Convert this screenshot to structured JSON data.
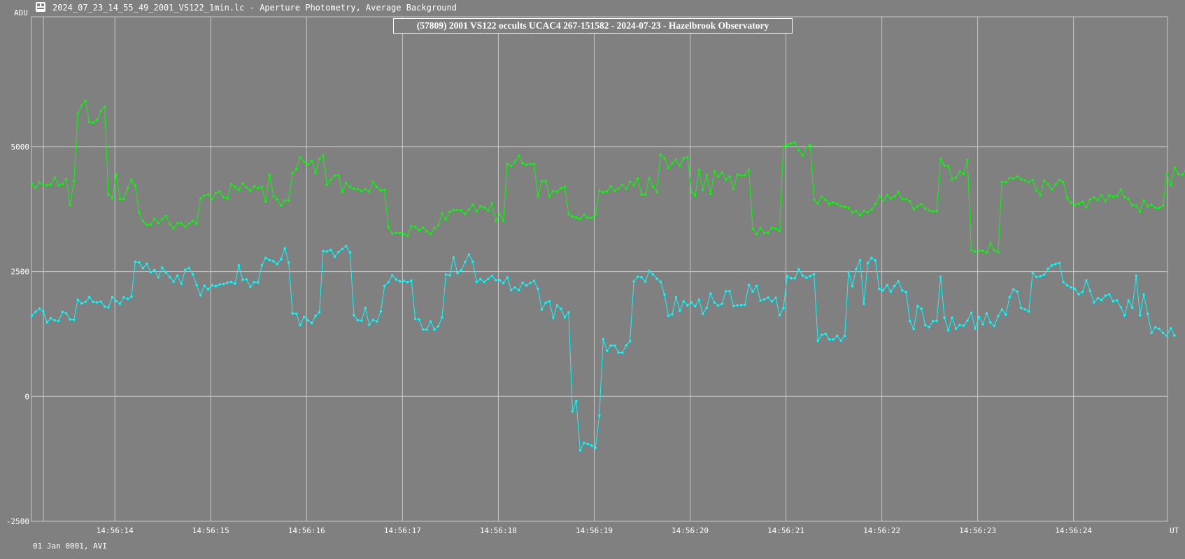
{
  "window": {
    "title": "2024_07_23_14_55_49_2001_VS122_1min.lc - Aperture Photometry, Average Background",
    "icon": "lightcurve-app-icon"
  },
  "footer_text": "01 Jan 0001, AVI",
  "colors": {
    "background": "#808080",
    "grid": "#c8c8c8",
    "target": "#00ffff",
    "comparison": "#00ff00"
  },
  "chart_data": {
    "type": "line",
    "title": "(57809) 2001 VS122 occults UCAC4 267-151582 - 2024-07-23 - Hazelbrook Observatory",
    "ylabel": "ADU",
    "xlabel": "UT",
    "ylim": [
      -2500,
      7600
    ],
    "xlim": [
      "14:56:13.13",
      "14:56:24.98"
    ],
    "y_ticks": [
      -2500,
      0,
      2500,
      5000
    ],
    "x_ticks": [
      "14:56:14",
      "14:56:15",
      "14:56:16",
      "14:56:17",
      "14:56:18",
      "14:56:19",
      "14:56:20",
      "14:56:21",
      "14:56:22",
      "14:56:23",
      "14:56:24"
    ],
    "grid": true,
    "legend": "none",
    "x_start": "14:56:13.133",
    "x_step_seconds": 0.04,
    "series": [
      {
        "color": "#00ff00",
        "values": [
          4247,
          4177,
          4290,
          4236,
          4229,
          4246,
          4381,
          4229,
          4252,
          4350,
          3831,
          4301,
          5656,
          5826,
          5919,
          5493,
          5482,
          5536,
          5719,
          5803,
          4047,
          3971,
          4442,
          3947,
          3959,
          4172,
          4338,
          4218,
          3679,
          3505,
          3435,
          3441,
          3558,
          3468,
          3547,
          3616,
          3451,
          3365,
          3469,
          3464,
          3398,
          3455,
          3515,
          3458,
          3957,
          4022,
          4043,
          3947,
          4071,
          4101,
          3991,
          3965,
          4253,
          4196,
          4136,
          4267,
          4182,
          4117,
          4205,
          4164,
          4192,
          3901,
          4437,
          4009,
          3946,
          3820,
          3923,
          3918,
          4466,
          4555,
          4783,
          4694,
          4645,
          4719,
          4479,
          4753,
          4819,
          4238,
          4339,
          4421,
          4424,
          4095,
          4273,
          4195,
          4156,
          4153,
          4107,
          4153,
          4099,
          4292,
          4191,
          4121,
          4135,
          3386,
          3260,
          3278,
          3270,
          3253,
          3209,
          3411,
          3392,
          3325,
          3381,
          3306,
          3254,
          3366,
          3427,
          3657,
          3544,
          3693,
          3732,
          3731,
          3727,
          3653,
          3746,
          3834,
          3704,
          3807,
          3782,
          3721,
          3866,
          3517,
          3649,
          3514,
          4655,
          4612,
          4701,
          4817,
          4668,
          4635,
          4657,
          4651,
          4009,
          4309,
          4304,
          4003,
          4113,
          4094,
          4167,
          4196,
          3648,
          3603,
          3584,
          3555,
          3636,
          3573,
          3575,
          3636,
          4121,
          4092,
          4101,
          4205,
          4117,
          4161,
          4239,
          4156,
          4298,
          4224,
          4360,
          4042,
          4038,
          4368,
          4201,
          4087,
          4842,
          4766,
          4571,
          4662,
          4741,
          4616,
          4769,
          4785,
          4091,
          4021,
          4526,
          4133,
          4432,
          4053,
          4506,
          4393,
          4486,
          4341,
          4402,
          4155,
          4441,
          4425,
          4426,
          4535,
          3355,
          3250,
          3371,
          3276,
          3276,
          3378,
          3359,
          3310,
          5005,
          5038,
          5061,
          5090,
          4929,
          4823,
          4990,
          5036,
          3932,
          3864,
          4003,
          3932,
          3857,
          3881,
          3857,
          3811,
          3798,
          3774,
          3680,
          3712,
          3631,
          3710,
          3686,
          3743,
          3850,
          4006,
          3920,
          4027,
          3965,
          4006,
          4094,
          3947,
          3951,
          3903,
          3748,
          3805,
          3850,
          3759,
          3725,
          3709,
          3707,
          4757,
          4624,
          4609,
          4349,
          4378,
          4495,
          4452,
          4736,
          2926,
          2899,
          2917,
          2918,
          2878,
          3063,
          2924,
          2890,
          4294,
          4290,
          4371,
          4360,
          4405,
          4347,
          4329,
          4289,
          4332,
          4128,
          4031,
          4323,
          4251,
          4145,
          4244,
          4335,
          4291,
          3977,
          3881,
          3828,
          3856,
          3893,
          3784,
          3939,
          3984,
          3930,
          4028,
          3907,
          4027,
          3999,
          4016,
          4139,
          3989,
          3952,
          3830,
          3825,
          3699,
          3923,
          3805,
          3836,
          3775,
          3773,
          3820,
          4462,
          4233,
          4578,
          4452,
          4437,
          4558,
          4490
        ]
      },
      {
        "color": "#00ffff",
        "values": [
          1616,
          1695,
          1757,
          1698,
          1484,
          1564,
          1520,
          1508,
          1691,
          1663,
          1542,
          1535,
          1935,
          1862,
          1894,
          1988,
          1893,
          1883,
          1896,
          1800,
          1782,
          1986,
          1909,
          1855,
          1982,
          1953,
          1998,
          2693,
          2683,
          2566,
          2655,
          2484,
          2531,
          2386,
          2578,
          2481,
          2388,
          2295,
          2418,
          2253,
          2534,
          2569,
          2445,
          2227,
          2021,
          2217,
          2144,
          2226,
          2206,
          2242,
          2248,
          2276,
          2291,
          2257,
          2623,
          2333,
          2341,
          2195,
          2288,
          2282,
          2625,
          2771,
          2729,
          2708,
          2648,
          2747,
          2962,
          2677,
          1660,
          1653,
          1427,
          1593,
          1523,
          1465,
          1613,
          1685,
          2910,
          2902,
          2932,
          2797,
          2894,
          2950,
          3007,
          2883,
          1625,
          1526,
          1518,
          1771,
          1432,
          1531,
          1499,
          1701,
          2212,
          2287,
          2425,
          2342,
          2304,
          2315,
          2289,
          2319,
          1554,
          1541,
          1340,
          1339,
          1496,
          1339,
          1404,
          1583,
          2440,
          2425,
          2782,
          2469,
          2525,
          2691,
          2840,
          2695,
          2291,
          2346,
          2292,
          2350,
          2413,
          2328,
          2329,
          2271,
          2382,
          2130,
          2179,
          2128,
          2274,
          2220,
          2271,
          2311,
          2156,
          1738,
          1876,
          1905,
          1572,
          1823,
          1754,
          1585,
          1683,
          -301,
          -90,
          -1085,
          -932,
          -955,
          -985,
          -1030,
          -388,
          1145,
          913,
          1019,
          1016,
          880,
          874,
          1021,
          1106,
          2299,
          2396,
          2386,
          2297,
          2509,
          2442,
          2358,
          2294,
          2036,
          1612,
          1642,
          1988,
          1712,
          1903,
          1823,
          1878,
          1804,
          1937,
          1653,
          1772,
          2058,
          1880,
          1819,
          1854,
          2102,
          2105,
          1810,
          1823,
          1828,
          1831,
          2234,
          2099,
          2210,
          1921,
          1940,
          1979,
          1902,
          1973,
          1626,
          1766,
          2403,
          2365,
          2367,
          2546,
          2420,
          2379,
          2408,
          2448,
          1112,
          1231,
          1252,
          1141,
          1140,
          1213,
          1118,
          1208,
          2496,
          2205,
          2553,
          2728,
          1852,
          2668,
          2769,
          2723,
          2148,
          2122,
          2226,
          2095,
          2210,
          2302,
          2119,
          2088,
          1505,
          1350,
          1809,
          1755,
          1428,
          1386,
          1505,
          1510,
          2394,
          1575,
          1322,
          1580,
          1357,
          1429,
          1416,
          1518,
          1674,
          1359,
          1590,
          1444,
          1660,
          1480,
          1408,
          1606,
          1738,
          1638,
          1986,
          2142,
          2098,
          1772,
          1741,
          1700,
          2474,
          2391,
          2403,
          2434,
          2557,
          2624,
          2651,
          2671,
          2290,
          2226,
          2185,
          2153,
          2045,
          2092,
          2321,
          2112,
          1879,
          1965,
          1926,
          2017,
          2041,
          1902,
          1924,
          1783,
          1619,
          1919,
          1774,
          2418,
          1622,
          2042,
          1655,
          1272,
          1382,
          1355,
          1272,
          1216,
          1364,
          1218
        ]
      }
    ]
  }
}
